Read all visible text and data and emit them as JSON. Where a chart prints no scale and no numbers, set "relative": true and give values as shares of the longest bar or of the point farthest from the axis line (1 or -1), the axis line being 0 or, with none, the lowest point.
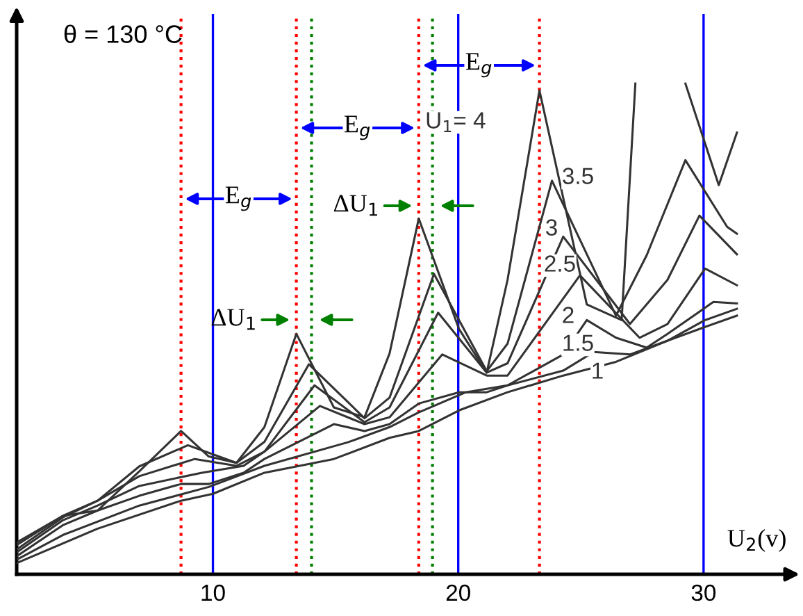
{
  "chart_data": {
    "type": "line",
    "relative": true,
    "title": "θ = 130 °C",
    "xlabel": "U$_{2}$(v)",
    "xlim": [
      2,
      33.6
    ],
    "xticks": [
      10,
      20,
      30
    ],
    "grid": false,
    "marker": "none",
    "line_style": "solid",
    "series": [
      {
        "name": "1",
        "color": "#333333",
        "x": [
          2.01,
          5.3,
          8.7,
          10.0,
          12.1,
          14.93,
          17.2,
          18.39,
          20.03,
          22.01,
          24.28,
          26.43,
          28.53,
          30.06,
          31.36
        ],
        "values": [
          0.023,
          0.093,
          0.15,
          0.164,
          0.207,
          0.235,
          0.278,
          0.292,
          0.334,
          0.371,
          0.405,
          0.433,
          0.476,
          0.504,
          0.527
        ]
      },
      {
        "name": "1.5",
        "color": "#333333",
        "x": [
          2.01,
          3.88,
          7.0,
          9.83,
          12.1,
          15.5,
          17.2,
          18.39,
          20.31,
          22.01,
          24.28,
          25.52,
          27.0,
          28.53,
          30.06,
          31.36
        ],
        "values": [
          0.03,
          0.08,
          0.14,
          0.178,
          0.221,
          0.269,
          0.3,
          0.33,
          0.371,
          0.385,
          0.415,
          0.453,
          0.448,
          0.476,
          0.518,
          0.541
        ]
      },
      {
        "name": "2",
        "color": "#333333",
        "x": [
          2.01,
          3.88,
          5.3,
          7.0,
          8.7,
          9.83,
          11.25,
          12.1,
          14.93,
          16.18,
          17.2,
          18.39,
          20.03,
          21.16,
          22.01,
          24.28,
          25.24,
          26.43,
          27.68,
          28.53,
          30.4,
          31.36
        ],
        "values": [
          0.037,
          0.1,
          0.13,
          0.16,
          0.184,
          0.184,
          0.207,
          0.235,
          0.306,
          0.292,
          0.306,
          0.348,
          0.371,
          0.371,
          0.385,
          0.448,
          0.518,
          0.482,
          0.462,
          0.49,
          0.555,
          0.552
        ]
      },
      {
        "name": "2.5",
        "color": "#333333",
        "x": [
          2.01,
          3.88,
          5.3,
          7.0,
          9.55,
          11.25,
          12.1,
          14.36,
          16.18,
          17.2,
          19.35,
          21.16,
          22.01,
          24.96,
          27.39,
          28.53,
          30.06,
          31.36
        ],
        "values": [
          0.045,
          0.11,
          0.14,
          0.18,
          0.207,
          0.221,
          0.25,
          0.343,
          0.306,
          0.32,
          0.448,
          0.405,
          0.405,
          0.609,
          0.482,
          0.51,
          0.623,
          0.589
        ]
      },
      {
        "name": "3",
        "color": "#333333",
        "x": [
          2.01,
          3.88,
          5.3,
          7.0,
          9.26,
          10.96,
          12.1,
          14.14,
          16.18,
          17.2,
          19.18,
          21.16,
          22.01,
          24.28,
          27.0,
          28.53,
          29.83,
          31.36
        ],
        "values": [
          0.051,
          0.116,
          0.15,
          0.2,
          0.235,
          0.221,
          0.25,
          0.385,
          0.31,
          0.34,
          0.533,
          0.411,
          0.43,
          0.688,
          0.51,
          0.6,
          0.731,
          0.652
        ]
      },
      {
        "name": "3.5",
        "color": "#333333",
        "x": [
          2.01,
          3.88,
          5.3,
          7.0,
          8.98,
          10.96,
          12.1,
          13.91,
          16.18,
          17.2,
          19.01,
          21.16,
          22.01,
          23.82,
          26.43,
          27.68,
          29.26,
          30.96,
          31.36
        ],
        "values": [
          0.06,
          0.119,
          0.15,
          0.22,
          0.263,
          0.227,
          0.27,
          0.428,
          0.318,
          0.36,
          0.612,
          0.414,
          0.47,
          0.802,
          0.527,
          0.65,
          0.844,
          0.708,
          0.694
        ]
      },
      {
        "name": "U$_{1}$= 4",
        "color": "#333333",
        "x": [
          2.01,
          3.88,
          5.3,
          7.0,
          8.7,
          9.83,
          10.96,
          12.1,
          13.4,
          14.93,
          16.18,
          17.2,
          18.39,
          20.03,
          21.16,
          22.01,
          23.31,
          25.24,
          26.66,
          27.22,
          28.2,
          29.26,
          30.62,
          31.36
        ],
        "values": [
          0.065,
          0.119,
          0.13,
          0.21,
          0.292,
          0.24,
          0.227,
          0.3,
          0.49,
          0.34,
          0.32,
          0.45,
          0.725,
          0.5,
          0.411,
          0.6,
          0.986,
          0.55,
          0.518,
          1.0,
          null,
          1.0,
          0.793,
          0.9
        ]
      }
    ],
    "ref_lines": [
      {
        "axis": "x",
        "value": 8.7,
        "color": "#ff0000",
        "line_style": "dotted"
      },
      {
        "axis": "x",
        "value": 13.4,
        "color": "#ff0000",
        "line_style": "dotted"
      },
      {
        "axis": "x",
        "value": 18.39,
        "color": "#ff0000",
        "line_style": "dotted"
      },
      {
        "axis": "x",
        "value": 23.31,
        "color": "#ff0000",
        "line_style": "dotted"
      },
      {
        "axis": "x",
        "value": 14.02,
        "color": "#008000",
        "line_style": "dotted"
      },
      {
        "axis": "x",
        "value": 18.95,
        "color": "#008000",
        "line_style": "dotted"
      },
      {
        "axis": "x",
        "value": 10,
        "color": "#0000ff",
        "line_style": "solid"
      },
      {
        "axis": "x",
        "value": 20,
        "color": "#0000ff",
        "line_style": "solid"
      },
      {
        "axis": "x",
        "value": 30,
        "color": "#0000ff",
        "line_style": "solid"
      }
    ],
    "annotations": [
      "E$_{g}$",
      "E$_{g}$",
      "E$_{g}$",
      "ΔU$_{1}$",
      "ΔU$_{1}$"
    ]
  }
}
